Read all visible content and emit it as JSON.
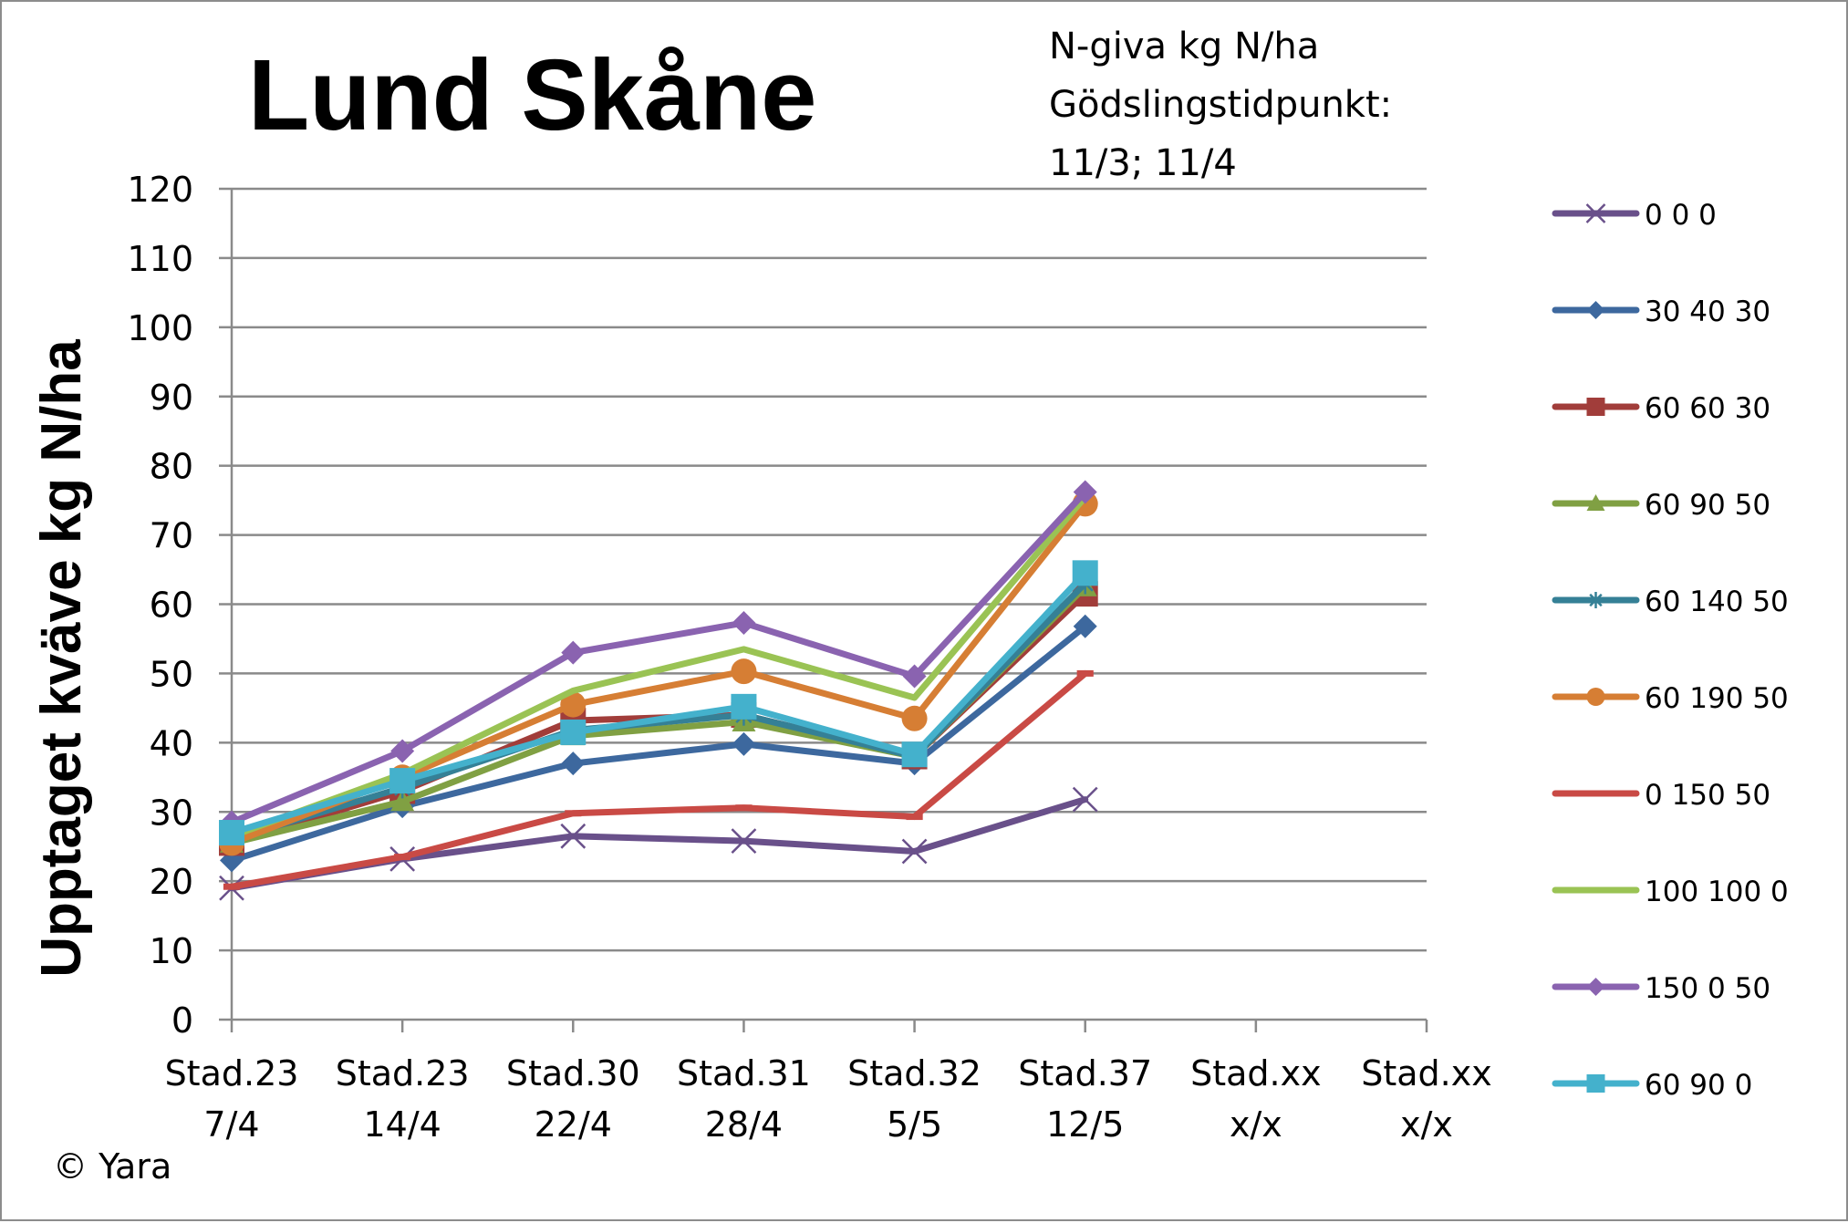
{
  "chart_data": {
    "type": "line",
    "title": "Lund Skåne",
    "annotation": [
      "N-giva kg N/ha",
      "Gödslingstidpunkt:",
      "11/3; 11/4"
    ],
    "ylabel": "Upptaget kväve kg N/ha",
    "xlabel": "",
    "copyright": "© Yara",
    "ylim": [
      0,
      120
    ],
    "ytick_step": 10,
    "grid": "horizontal",
    "legend_position": "right",
    "categories": [
      [
        "Stad.23",
        "7/4"
      ],
      [
        "Stad.23",
        "14/4"
      ],
      [
        "Stad.30",
        "22/4"
      ],
      [
        "Stad.31",
        "28/4"
      ],
      [
        "Stad.32",
        "5/5"
      ],
      [
        "Stad.37",
        "12/5"
      ],
      [
        "Stad.xx",
        "x/x"
      ],
      [
        "Stad.xx",
        "x/x"
      ]
    ],
    "series": [
      {
        "name": "0 0 0",
        "color": "#69508a",
        "marker": "x",
        "values": [
          19,
          23.2,
          26.5,
          25.8,
          24.3,
          31.8,
          null,
          null
        ]
      },
      {
        "name": "30 40 30",
        "color": "#3d689e",
        "marker": "diamond",
        "values": [
          23,
          30.8,
          37,
          39.8,
          37,
          56.8,
          null,
          null
        ]
      },
      {
        "name": "60 60 30",
        "color": "#a13d3a",
        "marker": "square",
        "values": [
          25.5,
          33,
          43.2,
          44,
          38,
          61.5,
          null,
          null
        ]
      },
      {
        "name": "60 90 50",
        "color": "#80a043",
        "marker": "triangle",
        "values": [
          25.5,
          31.5,
          41,
          43,
          38,
          62.5,
          null,
          null
        ]
      },
      {
        "name": "60 140 50",
        "color": "#358096",
        "marker": "star",
        "values": [
          26,
          33.5,
          41.8,
          44,
          38,
          63,
          null,
          null
        ]
      },
      {
        "name": "60 190 50",
        "color": "#d67e34",
        "marker": "circle",
        "values": [
          25.5,
          35,
          45.5,
          50.3,
          43.5,
          74.5,
          null,
          null
        ]
      },
      {
        "name": "0 150 50",
        "color": "#c94a45",
        "marker": "dash",
        "values": [
          19.2,
          23.5,
          29.8,
          30.6,
          29.3,
          50,
          null,
          null
        ]
      },
      {
        "name": "100 100 0",
        "color": "#9ac354",
        "marker": "none",
        "values": [
          26.5,
          35.5,
          47.5,
          53.5,
          46.5,
          75.5,
          null,
          null
        ]
      },
      {
        "name": "150 0 50",
        "color": "#8a63b0",
        "marker": "diamond",
        "values": [
          28.5,
          38.8,
          53,
          57.3,
          49.6,
          76.2,
          null,
          null
        ]
      },
      {
        "name": "60 90 0",
        "color": "#44b1cc",
        "marker": "square",
        "values": [
          27,
          34.5,
          41.5,
          45.2,
          38.3,
          64.5,
          null,
          null
        ]
      }
    ]
  }
}
